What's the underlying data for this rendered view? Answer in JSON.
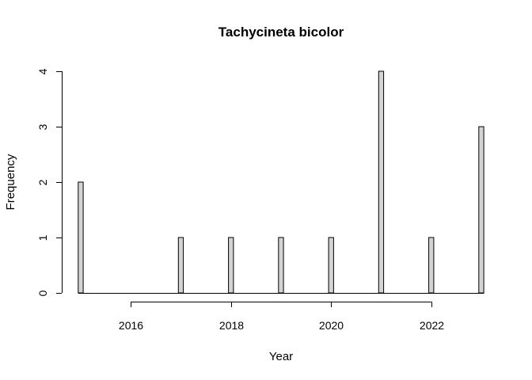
{
  "chart_data": {
    "type": "bar",
    "title": "Tachycineta bicolor",
    "xlabel": "Year",
    "ylabel": "Frequency",
    "x_values": [
      2015,
      2017,
      2018,
      2019,
      2020,
      2021,
      2022,
      2023
    ],
    "values": [
      2,
      1,
      1,
      1,
      1,
      4,
      1,
      3
    ],
    "x_range": [
      2015,
      2023
    ],
    "x_ticks": [
      2016,
      2018,
      2020,
      2022
    ],
    "y_ticks": [
      0,
      1,
      2,
      3,
      4
    ],
    "ylim": [
      0,
      4
    ],
    "bar_width_years": 0.1,
    "bar_color": "#d3d3d3",
    "grid": false,
    "legend": "none"
  }
}
